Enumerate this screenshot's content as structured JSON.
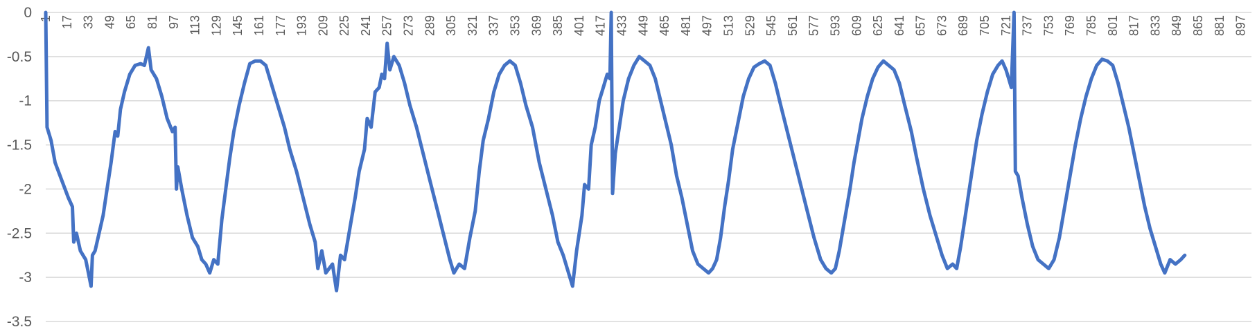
{
  "chart_data": {
    "type": "line",
    "title": "",
    "xlabel": "",
    "ylabel": "",
    "x_range": [
      1,
      905
    ],
    "x_tick_labels": [
      1,
      17,
      33,
      49,
      65,
      81,
      97,
      113,
      129,
      145,
      161,
      177,
      193,
      209,
      225,
      241,
      257,
      273,
      289,
      305,
      321,
      337,
      353,
      369,
      385,
      401,
      417,
      433,
      449,
      465,
      481,
      497,
      513,
      529,
      545,
      561,
      577,
      593,
      609,
      625,
      641,
      657,
      673,
      689,
      705,
      721,
      737,
      753,
      769,
      785,
      801,
      817,
      833,
      849,
      865,
      881,
      897
    ],
    "x_axis_position": "top",
    "y_tick_labels": [
      "0",
      "-0.5",
      "-1",
      "-1.5",
      "-2",
      "-2.5",
      "-3",
      "-3.5"
    ],
    "ylim": [
      -3.5,
      0
    ],
    "grid": "horizontal",
    "legend": "none",
    "series_color": "#4472C4",
    "series": [
      {
        "points": [
          [
            1,
            0
          ],
          [
            2,
            -1.3
          ],
          [
            5,
            -1.45
          ],
          [
            8,
            -1.7
          ],
          [
            13,
            -1.9
          ],
          [
            18,
            -2.1
          ],
          [
            21,
            -2.2
          ],
          [
            22,
            -2.6
          ],
          [
            24,
            -2.5
          ],
          [
            27,
            -2.7
          ],
          [
            31,
            -2.8
          ],
          [
            33,
            -2.95
          ],
          [
            35,
            -3.1
          ],
          [
            36,
            -2.75
          ],
          [
            38,
            -2.7
          ],
          [
            41,
            -2.5
          ],
          [
            44,
            -2.3
          ],
          [
            47,
            -2.0
          ],
          [
            50,
            -1.7
          ],
          [
            53,
            -1.35
          ],
          [
            55,
            -1.4
          ],
          [
            57,
            -1.1
          ],
          [
            60,
            -0.9
          ],
          [
            64,
            -0.7
          ],
          [
            68,
            -0.6
          ],
          [
            72,
            -0.58
          ],
          [
            75,
            -0.6
          ],
          [
            78,
            -0.4
          ],
          [
            80,
            -0.65
          ],
          [
            84,
            -0.75
          ],
          [
            88,
            -0.95
          ],
          [
            92,
            -1.2
          ],
          [
            96,
            -1.35
          ],
          [
            98,
            -1.3
          ],
          [
            99,
            -2.0
          ],
          [
            100,
            -1.75
          ],
          [
            103,
            -2.0
          ],
          [
            107,
            -2.3
          ],
          [
            111,
            -2.55
          ],
          [
            115,
            -2.65
          ],
          [
            118,
            -2.8
          ],
          [
            121,
            -2.85
          ],
          [
            124,
            -2.95
          ],
          [
            127,
            -2.8
          ],
          [
            130,
            -2.85
          ],
          [
            133,
            -2.35
          ],
          [
            136,
            -2.0
          ],
          [
            139,
            -1.65
          ],
          [
            142,
            -1.35
          ],
          [
            146,
            -1.05
          ],
          [
            150,
            -0.8
          ],
          [
            154,
            -0.58
          ],
          [
            158,
            -0.55
          ],
          [
            162,
            -0.55
          ],
          [
            166,
            -0.6
          ],
          [
            170,
            -0.8
          ],
          [
            175,
            -1.05
          ],
          [
            180,
            -1.3
          ],
          [
            184,
            -1.55
          ],
          [
            189,
            -1.8
          ],
          [
            194,
            -2.1
          ],
          [
            199,
            -2.4
          ],
          [
            203,
            -2.6
          ],
          [
            205,
            -2.9
          ],
          [
            208,
            -2.7
          ],
          [
            211,
            -2.95
          ],
          [
            216,
            -2.85
          ],
          [
            219,
            -3.15
          ],
          [
            222,
            -2.75
          ],
          [
            225,
            -2.8
          ],
          [
            229,
            -2.45
          ],
          [
            233,
            -2.1
          ],
          [
            236,
            -1.8
          ],
          [
            240,
            -1.55
          ],
          [
            242,
            -1.2
          ],
          [
            245,
            -1.3
          ],
          [
            248,
            -0.9
          ],
          [
            251,
            -0.85
          ],
          [
            253,
            -0.7
          ],
          [
            255,
            -0.75
          ],
          [
            257,
            -0.35
          ],
          [
            259,
            -0.65
          ],
          [
            262,
            -0.5
          ],
          [
            266,
            -0.6
          ],
          [
            270,
            -0.8
          ],
          [
            274,
            -1.05
          ],
          [
            279,
            -1.3
          ],
          [
            284,
            -1.6
          ],
          [
            289,
            -1.9
          ],
          [
            294,
            -2.2
          ],
          [
            299,
            -2.5
          ],
          [
            304,
            -2.8
          ],
          [
            307,
            -2.95
          ],
          [
            311,
            -2.85
          ],
          [
            315,
            -2.9
          ],
          [
            319,
            -2.55
          ],
          [
            323,
            -2.25
          ],
          [
            326,
            -1.8
          ],
          [
            329,
            -1.45
          ],
          [
            333,
            -1.2
          ],
          [
            337,
            -0.9
          ],
          [
            341,
            -0.7
          ],
          [
            345,
            -0.6
          ],
          [
            349,
            -0.55
          ],
          [
            353,
            -0.6
          ],
          [
            357,
            -0.8
          ],
          [
            361,
            -1.05
          ],
          [
            366,
            -1.3
          ],
          [
            371,
            -1.7
          ],
          [
            376,
            -2.0
          ],
          [
            381,
            -2.3
          ],
          [
            385,
            -2.6
          ],
          [
            389,
            -2.75
          ],
          [
            393,
            -2.95
          ],
          [
            396,
            -3.1
          ],
          [
            399,
            -2.7
          ],
          [
            403,
            -2.3
          ],
          [
            405,
            -1.95
          ],
          [
            408,
            -2.0
          ],
          [
            410,
            -1.5
          ],
          [
            413,
            -1.3
          ],
          [
            416,
            -1.0
          ],
          [
            419,
            -0.85
          ],
          [
            422,
            -0.7
          ],
          [
            424,
            -0.75
          ],
          [
            425,
            0
          ],
          [
            426,
            -2.05
          ],
          [
            428,
            -1.6
          ],
          [
            431,
            -1.3
          ],
          [
            434,
            -1.0
          ],
          [
            438,
            -0.75
          ],
          [
            442,
            -0.6
          ],
          [
            446,
            -0.5
          ],
          [
            450,
            -0.55
          ],
          [
            454,
            -0.6
          ],
          [
            458,
            -0.75
          ],
          [
            462,
            -1.0
          ],
          [
            466,
            -1.25
          ],
          [
            470,
            -1.5
          ],
          [
            474,
            -1.85
          ],
          [
            478,
            -2.1
          ],
          [
            482,
            -2.4
          ],
          [
            486,
            -2.7
          ],
          [
            490,
            -2.85
          ],
          [
            494,
            -2.9
          ],
          [
            498,
            -2.95
          ],
          [
            501,
            -2.9
          ],
          [
            504,
            -2.8
          ],
          [
            507,
            -2.55
          ],
          [
            510,
            -2.2
          ],
          [
            513,
            -1.9
          ],
          [
            516,
            -1.55
          ],
          [
            520,
            -1.25
          ],
          [
            524,
            -0.95
          ],
          [
            528,
            -0.75
          ],
          [
            532,
            -0.62
          ],
          [
            536,
            -0.58
          ],
          [
            540,
            -0.55
          ],
          [
            544,
            -0.6
          ],
          [
            548,
            -0.8
          ],
          [
            552,
            -1.05
          ],
          [
            557,
            -1.35
          ],
          [
            562,
            -1.65
          ],
          [
            567,
            -1.95
          ],
          [
            572,
            -2.25
          ],
          [
            577,
            -2.55
          ],
          [
            582,
            -2.8
          ],
          [
            586,
            -2.9
          ],
          [
            590,
            -2.95
          ],
          [
            593,
            -2.9
          ],
          [
            596,
            -2.7
          ],
          [
            600,
            -2.35
          ],
          [
            604,
            -2.0
          ],
          [
            607,
            -1.7
          ],
          [
            610,
            -1.45
          ],
          [
            613,
            -1.2
          ],
          [
            617,
            -0.95
          ],
          [
            621,
            -0.75
          ],
          [
            625,
            -0.62
          ],
          [
            629,
            -0.55
          ],
          [
            633,
            -0.6
          ],
          [
            637,
            -0.65
          ],
          [
            641,
            -0.8
          ],
          [
            645,
            -1.05
          ],
          [
            650,
            -1.35
          ],
          [
            654,
            -1.65
          ],
          [
            659,
            -2.0
          ],
          [
            664,
            -2.3
          ],
          [
            669,
            -2.55
          ],
          [
            673,
            -2.75
          ],
          [
            677,
            -2.9
          ],
          [
            681,
            -2.85
          ],
          [
            684,
            -2.9
          ],
          [
            687,
            -2.65
          ],
          [
            690,
            -2.35
          ],
          [
            693,
            -2.05
          ],
          [
            696,
            -1.75
          ],
          [
            699,
            -1.45
          ],
          [
            703,
            -1.15
          ],
          [
            707,
            -0.9
          ],
          [
            711,
            -0.7
          ],
          [
            715,
            -0.6
          ],
          [
            718,
            -0.55
          ],
          [
            721,
            -0.65
          ],
          [
            723,
            -0.75
          ],
          [
            725,
            -0.85
          ],
          [
            727,
            0
          ],
          [
            728,
            -1.8
          ],
          [
            730,
            -1.85
          ],
          [
            733,
            -2.1
          ],
          [
            737,
            -2.4
          ],
          [
            741,
            -2.65
          ],
          [
            745,
            -2.8
          ],
          [
            749,
            -2.85
          ],
          [
            753,
            -2.9
          ],
          [
            757,
            -2.8
          ],
          [
            761,
            -2.55
          ],
          [
            765,
            -2.2
          ],
          [
            769,
            -1.85
          ],
          [
            773,
            -1.5
          ],
          [
            777,
            -1.2
          ],
          [
            781,
            -0.95
          ],
          [
            785,
            -0.75
          ],
          [
            789,
            -0.6
          ],
          [
            793,
            -0.53
          ],
          [
            797,
            -0.55
          ],
          [
            801,
            -0.6
          ],
          [
            805,
            -0.8
          ],
          [
            809,
            -1.05
          ],
          [
            813,
            -1.3
          ],
          [
            817,
            -1.6
          ],
          [
            821,
            -1.9
          ],
          [
            825,
            -2.2
          ],
          [
            829,
            -2.45
          ],
          [
            833,
            -2.65
          ],
          [
            837,
            -2.85
          ],
          [
            840,
            -2.95
          ],
          [
            844,
            -2.8
          ],
          [
            848,
            -2.85
          ],
          [
            852,
            -2.8
          ],
          [
            855,
            -2.75
          ]
        ]
      }
    ]
  }
}
